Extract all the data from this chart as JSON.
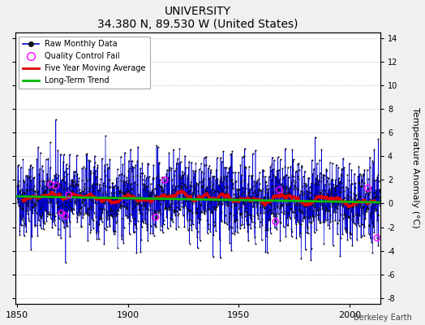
{
  "title": "UNIVERSITY",
  "subtitle": "34.380 N, 89.530 W (United States)",
  "credit": "Berkeley Earth",
  "ylabel": "Temperature Anomaly (°C)",
  "xlim": [
    1849,
    2014
  ],
  "ylim": [
    -8.5,
    14.5
  ],
  "yticks": [
    -8,
    -6,
    -4,
    -2,
    0,
    2,
    4,
    6,
    8,
    10,
    12,
    14
  ],
  "xticks": [
    1850,
    1900,
    1950,
    2000
  ],
  "x_start": 1850,
  "x_end": 2014,
  "seed": 42,
  "raw_line_color": "#0000cc",
  "stem_color": "#8888ee",
  "raw_marker_color": "#111111",
  "moving_avg_color": "#dd0000",
  "trend_color": "#00bb00",
  "qc_fail_color": "#ff00ff",
  "plot_bg_color": "#ffffff",
  "fig_bg_color": "#f0f0f0",
  "grid_color": "#cccccc"
}
